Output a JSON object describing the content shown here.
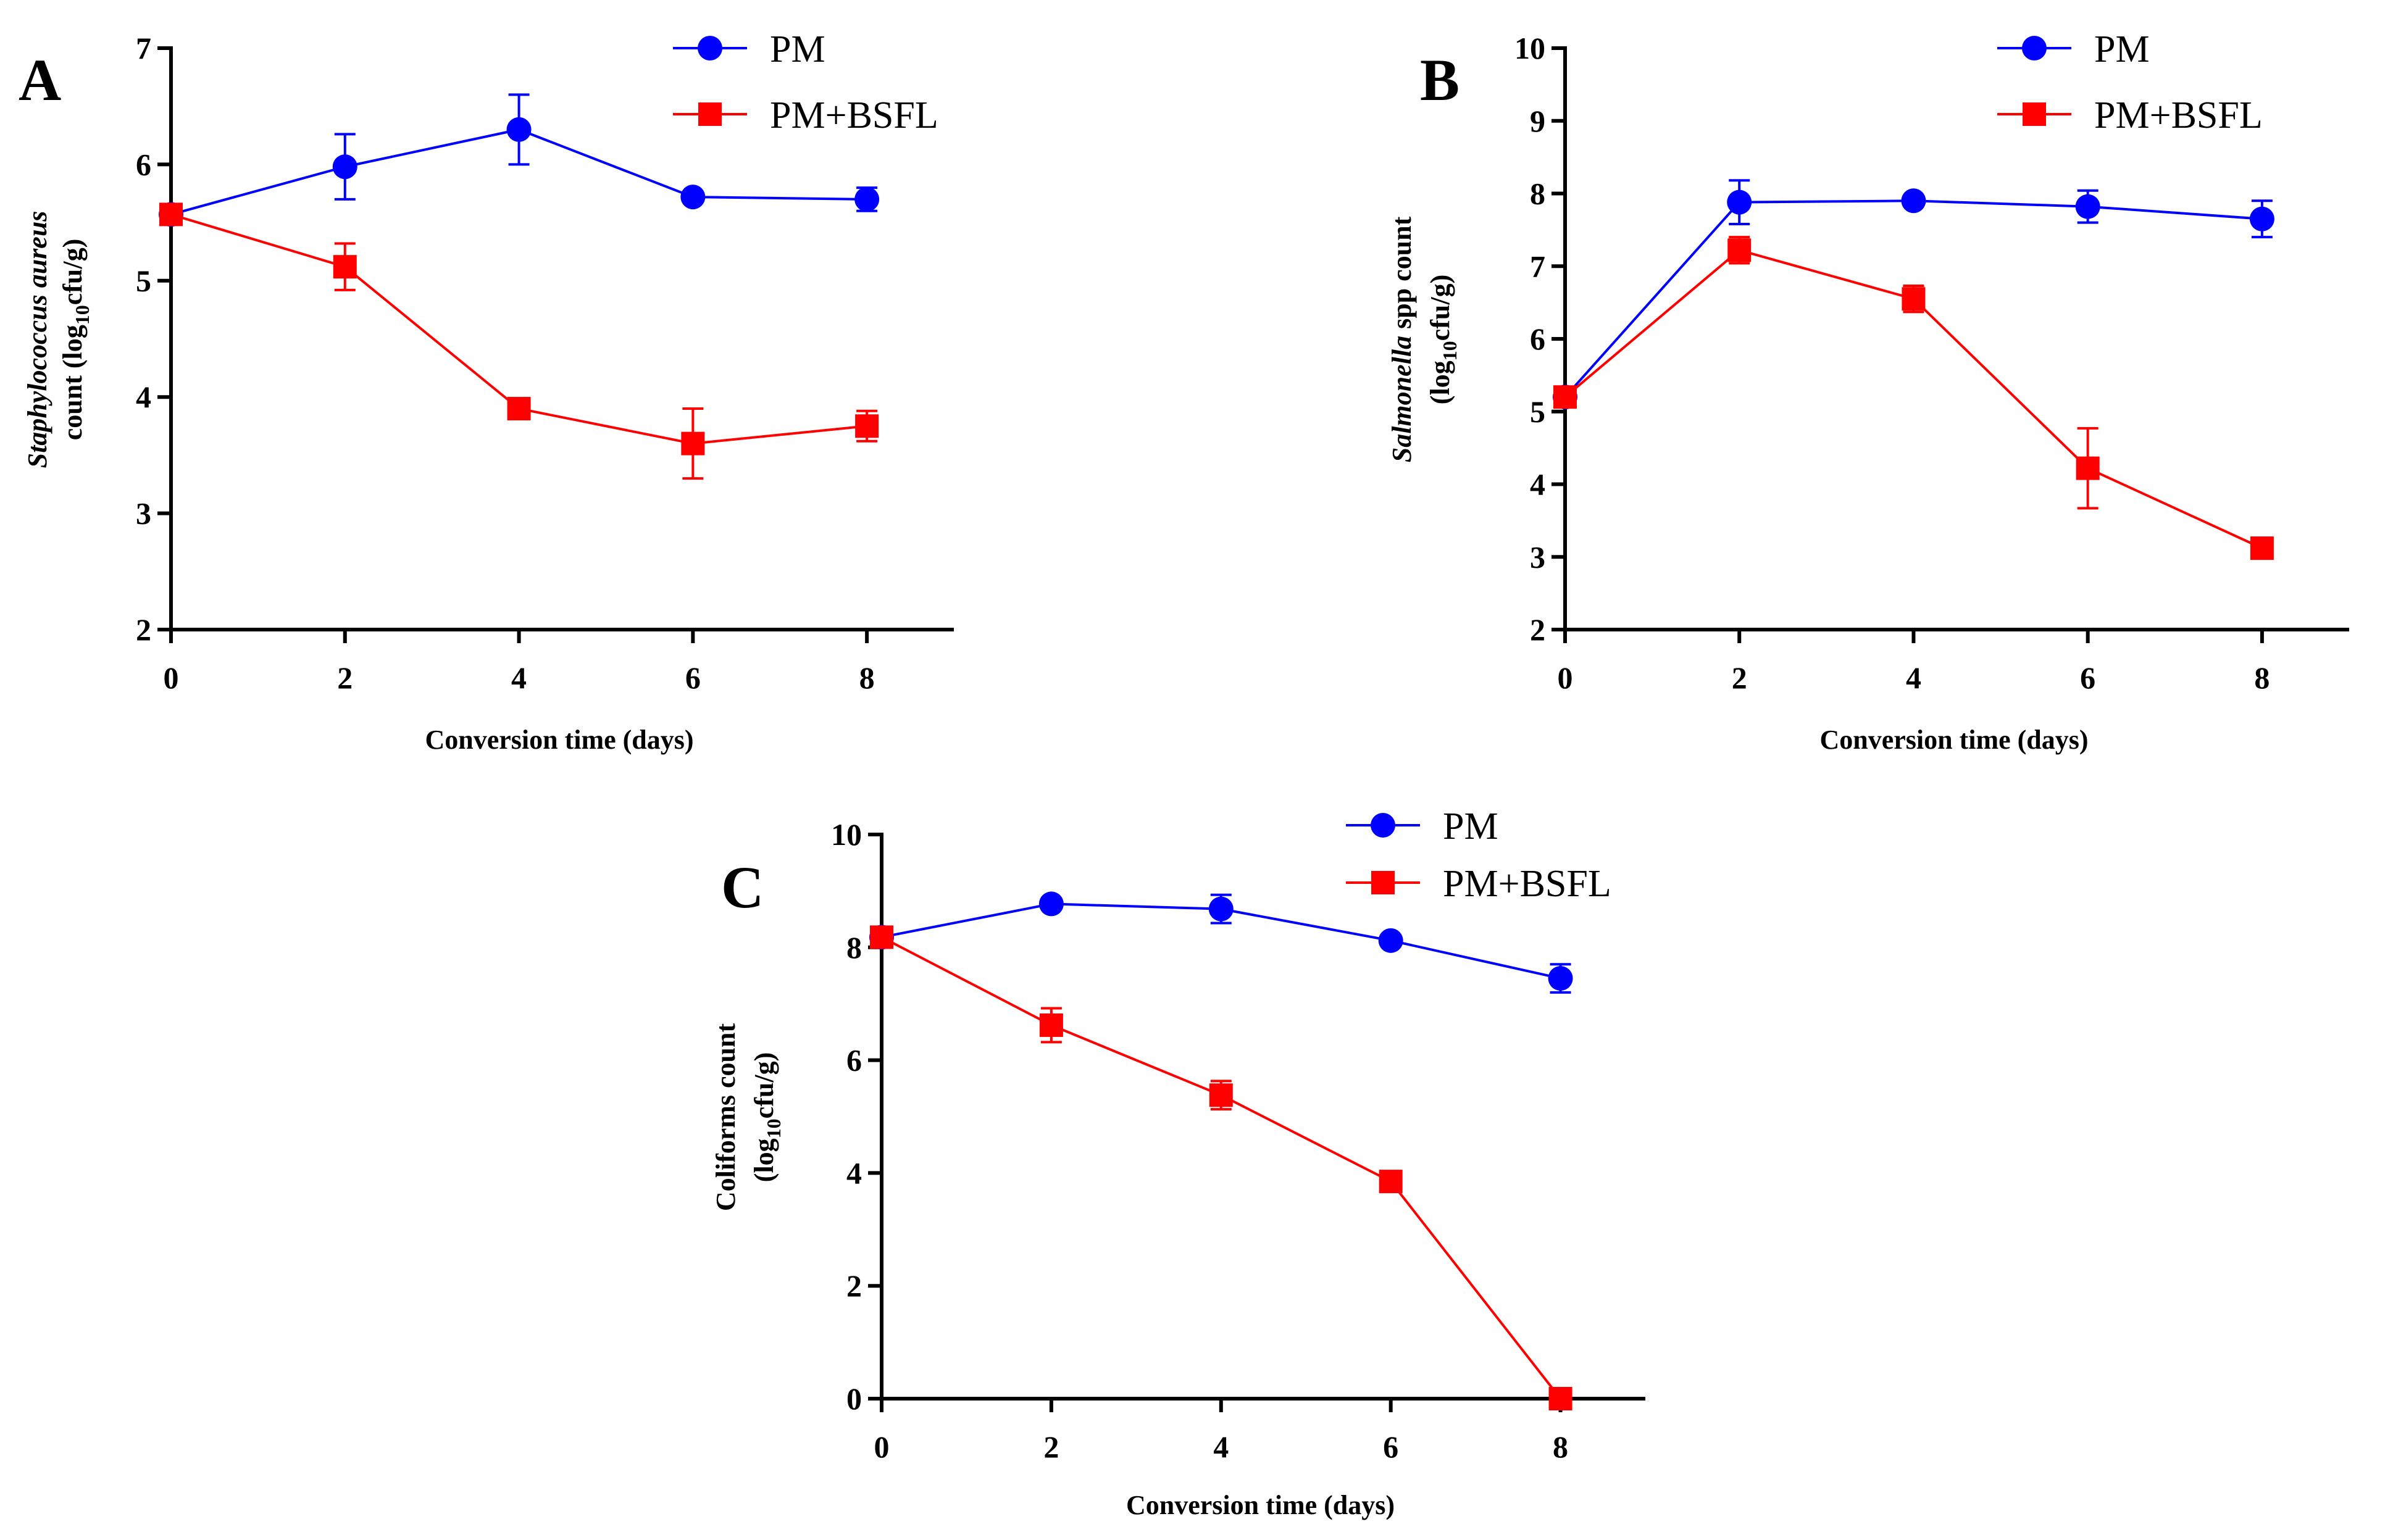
{
  "chart_data": [
    {
      "type": "line",
      "panel": "A",
      "xlabel": "Conversion time (days)",
      "ylabel_line1": [
        {
          "text": "Staphylococcus aureus",
          "italic": true
        }
      ],
      "ylabel_line2": [
        {
          "text": "count (log",
          "italic": false
        },
        {
          "text": "10",
          "sub": true
        },
        {
          "text": "cfu/g)",
          "italic": false
        }
      ],
      "x_ticks": [
        "0",
        "2",
        "4",
        "6",
        "8"
      ],
      "y_ticks": [
        "2",
        "3",
        "4",
        "5",
        "6",
        "7"
      ],
      "xlim": [
        0,
        9
      ],
      "ylim": [
        2,
        7
      ],
      "x": [
        0,
        2,
        4,
        6,
        8
      ],
      "series": [
        {
          "name": "PM",
          "color": "#0000ff",
          "marker": "circle",
          "values": [
            5.57,
            5.98,
            6.3,
            5.72,
            5.7
          ],
          "errors": [
            0.05,
            0.28,
            0.3,
            0.03,
            0.1
          ]
        },
        {
          "name": "PM+BSFL",
          "color": "#ff0000",
          "marker": "square",
          "values": [
            5.57,
            5.12,
            3.9,
            3.6,
            3.75
          ],
          "errors": [
            0.05,
            0.2,
            0.05,
            0.3,
            0.13
          ]
        }
      ],
      "legend": [
        "PM",
        "PM+BSFL"
      ]
    },
    {
      "type": "line",
      "panel": "B",
      "xlabel": "Conversion time (days)",
      "ylabel_line1": [
        {
          "text": "Salmonella",
          "italic": true
        },
        {
          "text": " spp count",
          "italic": false
        }
      ],
      "ylabel_line2": [
        {
          "text": "(log",
          "italic": false
        },
        {
          "text": "10",
          "sub": true
        },
        {
          "text": "cfu/g)",
          "italic": false
        }
      ],
      "x_ticks": [
        "0",
        "2",
        "4",
        "6",
        "8"
      ],
      "y_ticks": [
        "2",
        "3",
        "4",
        "5",
        "6",
        "7",
        "8",
        "9",
        "10"
      ],
      "xlim": [
        0,
        9
      ],
      "ylim": [
        2,
        10
      ],
      "x": [
        0,
        2,
        4,
        6,
        8
      ],
      "series": [
        {
          "name": "PM",
          "color": "#0000ff",
          "marker": "circle",
          "values": [
            5.2,
            7.88,
            7.9,
            7.82,
            7.65
          ],
          "errors": [
            0.1,
            0.3,
            0.05,
            0.22,
            0.25
          ]
        },
        {
          "name": "PM+BSFL",
          "color": "#ff0000",
          "marker": "square",
          "values": [
            5.2,
            7.22,
            6.55,
            4.22,
            3.12
          ],
          "errors": [
            0.1,
            0.18,
            0.18,
            0.55,
            0.08
          ]
        }
      ],
      "legend": [
        "PM",
        "PM+BSFL"
      ]
    },
    {
      "type": "line",
      "panel": "C",
      "xlabel": "Conversion time (days)",
      "ylabel_line1": [
        {
          "text": "Coliforms  count",
          "italic": false
        }
      ],
      "ylabel_line2": [
        {
          "text": "(log",
          "italic": false
        },
        {
          "text": "10",
          "sub": true
        },
        {
          "text": "cfu/g)",
          "italic": false
        }
      ],
      "x_ticks": [
        "0",
        "2",
        "4",
        "6",
        "8"
      ],
      "y_ticks": [
        "0",
        "2",
        "4",
        "6",
        "8",
        "10"
      ],
      "xlim": [
        0,
        9
      ],
      "ylim": [
        0,
        10
      ],
      "x": [
        0,
        2,
        4,
        6,
        8
      ],
      "series": [
        {
          "name": "PM",
          "color": "#0000ff",
          "marker": "circle",
          "values": [
            8.18,
            8.77,
            8.68,
            8.12,
            7.45
          ],
          "errors": [
            0.05,
            0.05,
            0.25,
            0.05,
            0.25
          ]
        },
        {
          "name": "PM+BSFL",
          "color": "#ff0000",
          "marker": "square",
          "values": [
            8.18,
            6.62,
            5.38,
            3.85,
            0.0
          ],
          "errors": [
            0.05,
            0.3,
            0.25,
            0.08,
            0.02
          ]
        }
      ],
      "legend": [
        "PM",
        "PM+BSFL"
      ]
    }
  ]
}
